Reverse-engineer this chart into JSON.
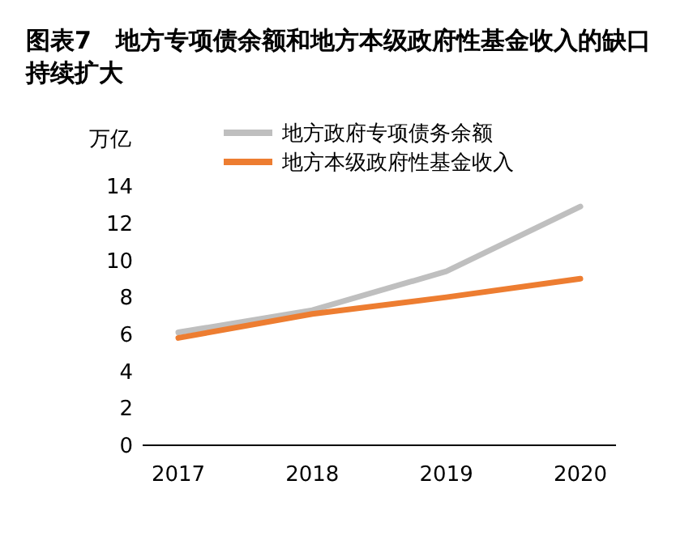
{
  "chart_data": {
    "type": "line",
    "title": "图表7　地方专项债余额和地方本级政府性基金收入的缺口持续扩大",
    "ylabel": "万亿",
    "categories": [
      "2017",
      "2018",
      "2019",
      "2020"
    ],
    "series": [
      {
        "name": "地方政府专项债务余额",
        "color": "#bfbfbf",
        "values": [
          6.1,
          7.3,
          9.4,
          12.9
        ]
      },
      {
        "name": "地方本级政府性基金收入",
        "color": "#ed7d31",
        "values": [
          5.8,
          7.1,
          8.0,
          9.0
        ]
      }
    ],
    "ylim": [
      0,
      14
    ],
    "yticks": [
      0,
      2,
      4,
      6,
      8,
      10,
      12,
      14
    ],
    "legend": "top right",
    "grid": false
  }
}
